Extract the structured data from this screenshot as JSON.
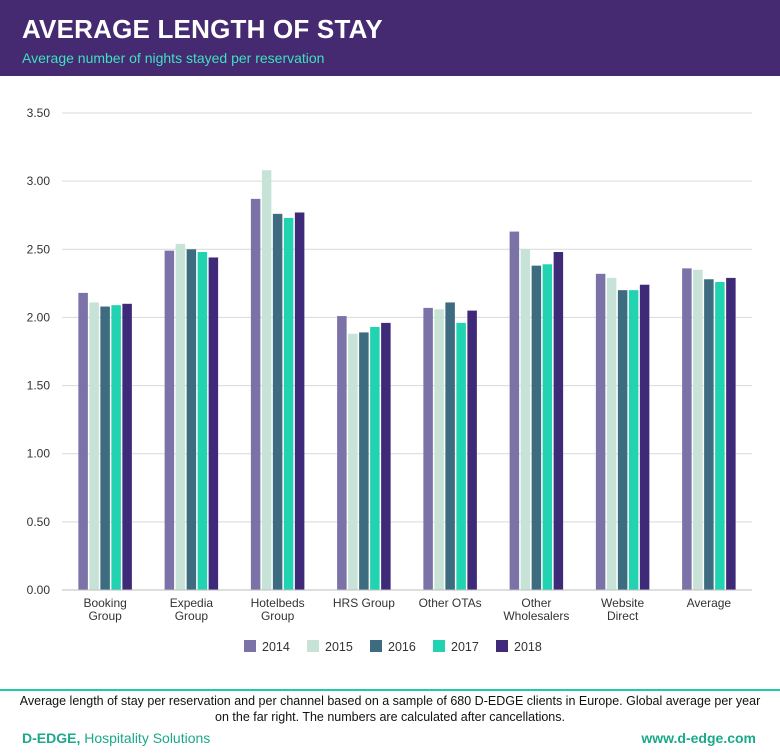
{
  "header": {
    "title": "AVERAGE LENGTH OF STAY",
    "subtitle": "Average number of nights stayed per reservation"
  },
  "colors": {
    "header_bg": "#452a72",
    "accent": "#3fe0c0",
    "series": [
      "#7b72a8",
      "#c7e2d6",
      "#3d6b7f",
      "#22d3b2",
      "#3f2a7a"
    ]
  },
  "chart_data": {
    "type": "bar",
    "categories": [
      [
        "Booking",
        "Group"
      ],
      [
        "Expedia",
        "Group"
      ],
      [
        "Hotelbeds",
        "Group"
      ],
      [
        "HRS Group"
      ],
      [
        "Other OTAs"
      ],
      [
        "Other",
        "Wholesalers"
      ],
      [
        "Website",
        "Direct"
      ],
      [
        "Average"
      ]
    ],
    "series": [
      {
        "name": "2014",
        "values": [
          2.18,
          2.49,
          2.87,
          2.01,
          2.07,
          2.63,
          2.32,
          2.36
        ]
      },
      {
        "name": "2015",
        "values": [
          2.11,
          2.54,
          3.08,
          1.88,
          2.06,
          2.5,
          2.29,
          2.35
        ]
      },
      {
        "name": "2016",
        "values": [
          2.08,
          2.5,
          2.76,
          1.89,
          2.11,
          2.38,
          2.2,
          2.28
        ]
      },
      {
        "name": "2017",
        "values": [
          2.09,
          2.48,
          2.73,
          1.93,
          1.96,
          2.39,
          2.2,
          2.26
        ]
      },
      {
        "name": "2018",
        "values": [
          2.1,
          2.44,
          2.77,
          1.96,
          2.05,
          2.48,
          2.24,
          2.29
        ]
      }
    ],
    "y_ticks": [
      "0.00",
      "0.50",
      "1.00",
      "1.50",
      "2.00",
      "2.50",
      "3.00",
      "3.50"
    ],
    "ylim": [
      0,
      3.5
    ],
    "grid": true,
    "legend": "bottom-center"
  },
  "footer": {
    "caption": "Average length of stay per reservation and per channel based on a sample of 680 D-EDGE clients in Europe. Global average per year on the far right. The numbers are calculated after cancellations.",
    "brand_name": "D-EDGE,",
    "brand_tagline": " Hospitality Solutions",
    "website": "www.d-edge.com"
  }
}
